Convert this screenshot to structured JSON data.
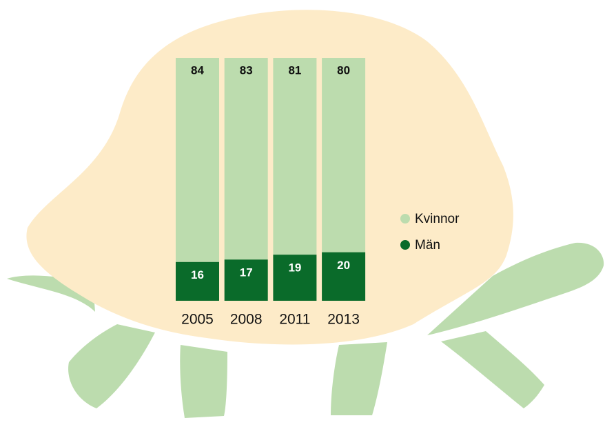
{
  "chart_data": {
    "type": "stacked_bar",
    "categories": [
      "2005",
      "2008",
      "2011",
      "2013"
    ],
    "series": [
      {
        "name": "Kvinnor",
        "color": "#bcdcae",
        "values": [
          84,
          83,
          81,
          80
        ]
      },
      {
        "name": "Män",
        "color": "#0a6b2a",
        "values": [
          16,
          17,
          19,
          20
        ]
      }
    ],
    "ylim": [
      0,
      100
    ]
  }
}
